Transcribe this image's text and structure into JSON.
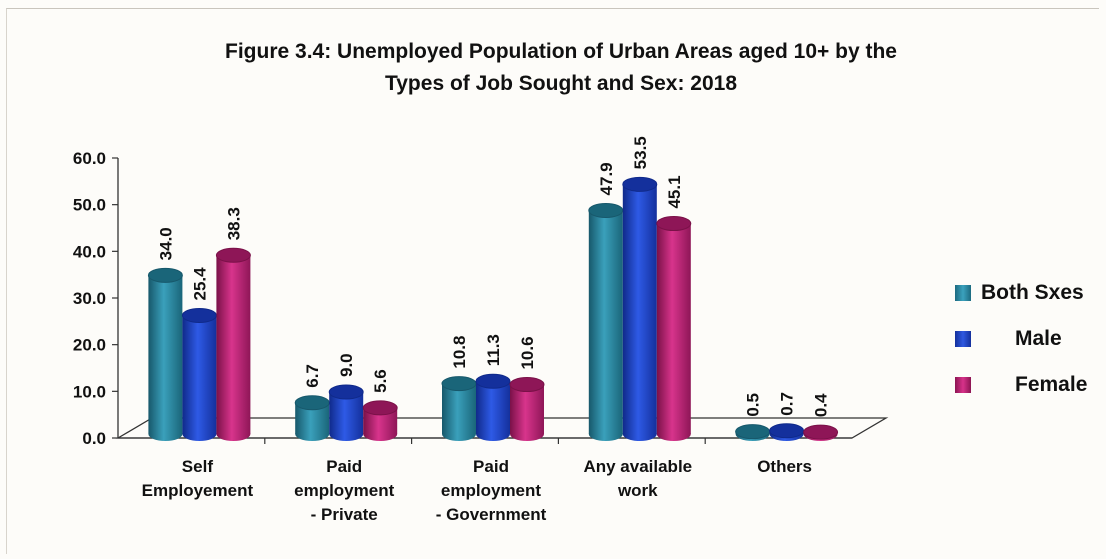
{
  "chart_data": {
    "type": "bar",
    "title": "Figure 3.4: Unemployed Population of Urban Areas aged 10+ by the Types of Job Sought and Sex: 2018",
    "title_lines": [
      "Figure 3.4: Unemployed Population of Urban Areas aged 10+ by the",
      "Types of Job Sought and Sex: 2018"
    ],
    "categories": [
      [
        "Self",
        "Employement"
      ],
      [
        "Paid",
        "employment",
        "- Private"
      ],
      [
        "Paid",
        "employment",
        "- Government"
      ],
      [
        "Any available",
        "work"
      ],
      [
        "Others"
      ]
    ],
    "series": [
      {
        "name": "Both Sxes",
        "values": [
          34.0,
          6.7,
          10.8,
          47.9,
          0.5
        ],
        "labels": [
          "34.0",
          "6.7",
          "10.8",
          "47.9",
          "0.5"
        ],
        "color": "#2a7f98"
      },
      {
        "name": "Male",
        "values": [
          25.4,
          9.0,
          11.3,
          53.5,
          0.7
        ],
        "labels": [
          "25.4",
          "9.0",
          "11.3",
          "53.5",
          "0.7"
        ],
        "color": "#1d3fc0"
      },
      {
        "name": "Female",
        "values": [
          38.3,
          5.6,
          10.6,
          45.1,
          0.4
        ],
        "labels": [
          "38.3",
          "5.6",
          "10.6",
          "45.1",
          "0.4"
        ],
        "color": "#b01e6a"
      }
    ],
    "ylim": [
      0,
      60
    ],
    "yticks": [
      "0.0",
      "10.0",
      "20.0",
      "30.0",
      "40.0",
      "50.0",
      "60.0"
    ],
    "ytick_values": [
      0,
      10,
      20,
      30,
      40,
      50,
      60
    ],
    "legend_position": "right",
    "style": "3d-cylinder"
  }
}
